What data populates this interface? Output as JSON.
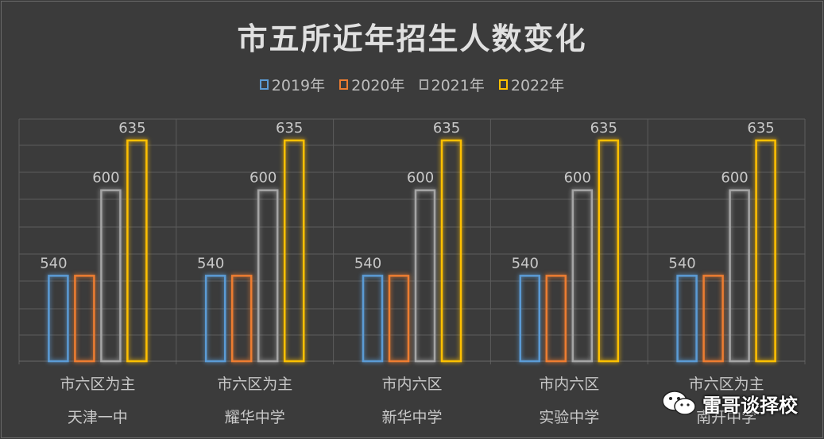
{
  "chart_data": {
    "type": "bar",
    "title": "市五所近年招生人数变化",
    "categories": [
      [
        "市六区为主",
        "天津一中"
      ],
      [
        "市六区为主",
        "耀华中学"
      ],
      [
        "市内六区",
        "新华中学"
      ],
      [
        "市内六区",
        "实验中学"
      ],
      [
        "市六区为主",
        "南开中学"
      ]
    ],
    "series": [
      {
        "name": "2019年",
        "color": "#5b9bd5",
        "values": [
          540,
          540,
          540,
          540,
          540
        ]
      },
      {
        "name": "2020年",
        "color": "#ed7d31",
        "values": [
          540,
          540,
          540,
          540,
          540
        ]
      },
      {
        "name": "2021年",
        "color": "#a5a5a5",
        "values": [
          600,
          600,
          600,
          600,
          600
        ]
      },
      {
        "name": "2022年",
        "color": "#ffc000",
        "values": [
          635,
          635,
          635,
          635,
          635
        ]
      }
    ],
    "data_labels": [
      [
        540,
        null,
        600,
        635
      ],
      [
        540,
        null,
        600,
        635
      ],
      [
        540,
        null,
        600,
        635
      ],
      [
        540,
        null,
        600,
        635
      ],
      [
        540,
        null,
        600,
        635
      ]
    ],
    "ylim": [
      480,
      650
    ],
    "grid": true,
    "legend_position": "top"
  },
  "watermark": {
    "text": "雷哥谈择校",
    "icon": "wechat-icon"
  }
}
